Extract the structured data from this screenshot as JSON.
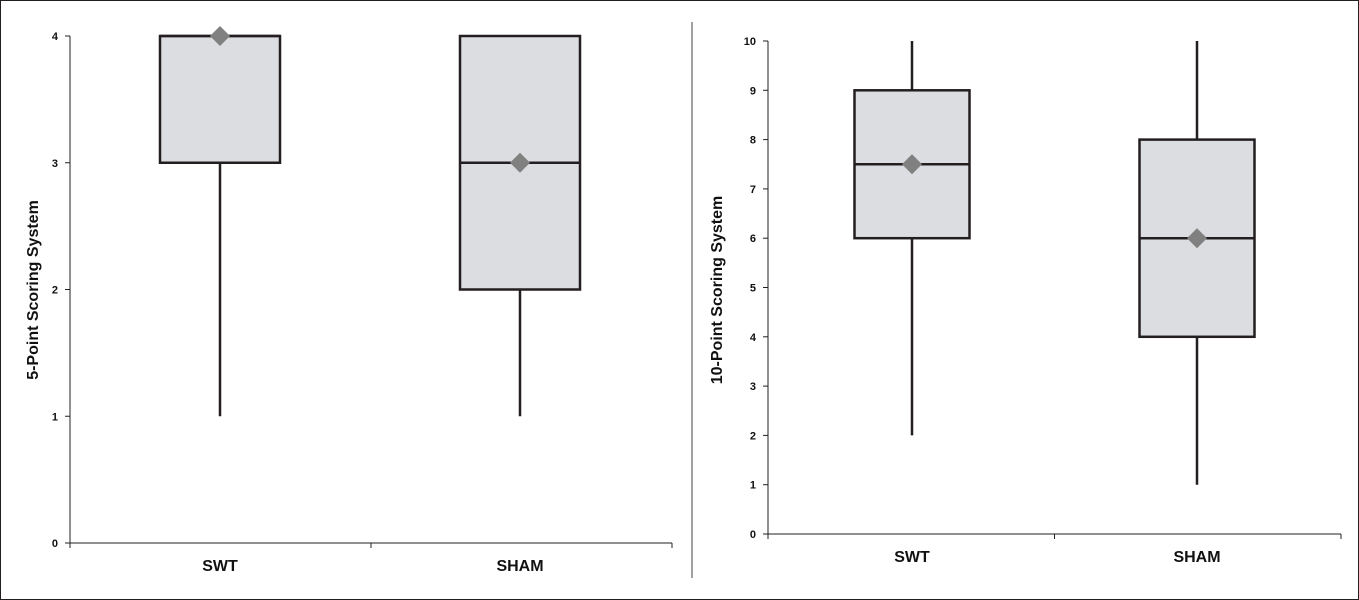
{
  "colors": {
    "box_fill": "#dcdde0",
    "box_stroke": "#231f20",
    "mean_marker": "#808080",
    "axis": "#231f20",
    "frame": "#231f20",
    "divider": "#a0a0a0"
  },
  "chart_data": [
    {
      "type": "boxplot",
      "ylabel": "5-Point Scoring System",
      "xlabel": "",
      "ylim": [
        0,
        4
      ],
      "yticks": [
        0,
        1,
        2,
        3,
        4
      ],
      "categories": [
        "SWT",
        "SHAM"
      ],
      "boxes": [
        {
          "category": "SWT",
          "min": 1,
          "q1": 3,
          "median": 4,
          "q3": 4,
          "max": 4,
          "mean": 4
        },
        {
          "category": "SHAM",
          "min": 1,
          "q1": 2,
          "median": 3,
          "q3": 4,
          "max": 4,
          "mean": 3
        }
      ],
      "grid": false,
      "legend": "none"
    },
    {
      "type": "boxplot",
      "ylabel": "10-Point Scoring System",
      "xlabel": "",
      "ylim": [
        0,
        10
      ],
      "yticks": [
        0,
        1,
        2,
        3,
        4,
        5,
        6,
        7,
        8,
        9,
        10
      ],
      "categories": [
        "SWT",
        "SHAM"
      ],
      "boxes": [
        {
          "category": "SWT",
          "min": 2,
          "q1": 6,
          "median": 7.5,
          "q3": 9,
          "max": 10,
          "mean": 7.5
        },
        {
          "category": "SHAM",
          "min": 1,
          "q1": 4,
          "median": 6,
          "q3": 8,
          "max": 10,
          "mean": 6
        }
      ],
      "grid": false,
      "legend": "none"
    }
  ]
}
